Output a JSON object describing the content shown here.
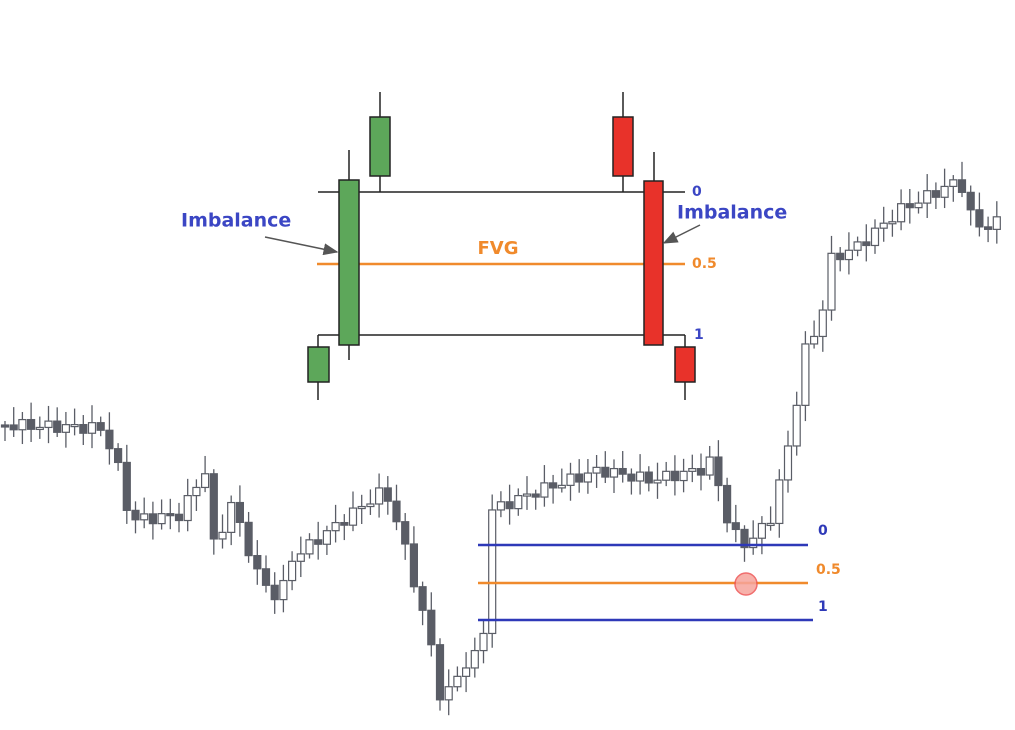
{
  "inset": {
    "left_label": "Imbalance",
    "right_label": "Imbalance",
    "gap_label": "FVG",
    "levels": [
      0,
      0.5,
      1
    ]
  },
  "chart": {
    "levels": [
      0,
      0.5,
      1
    ]
  }
}
